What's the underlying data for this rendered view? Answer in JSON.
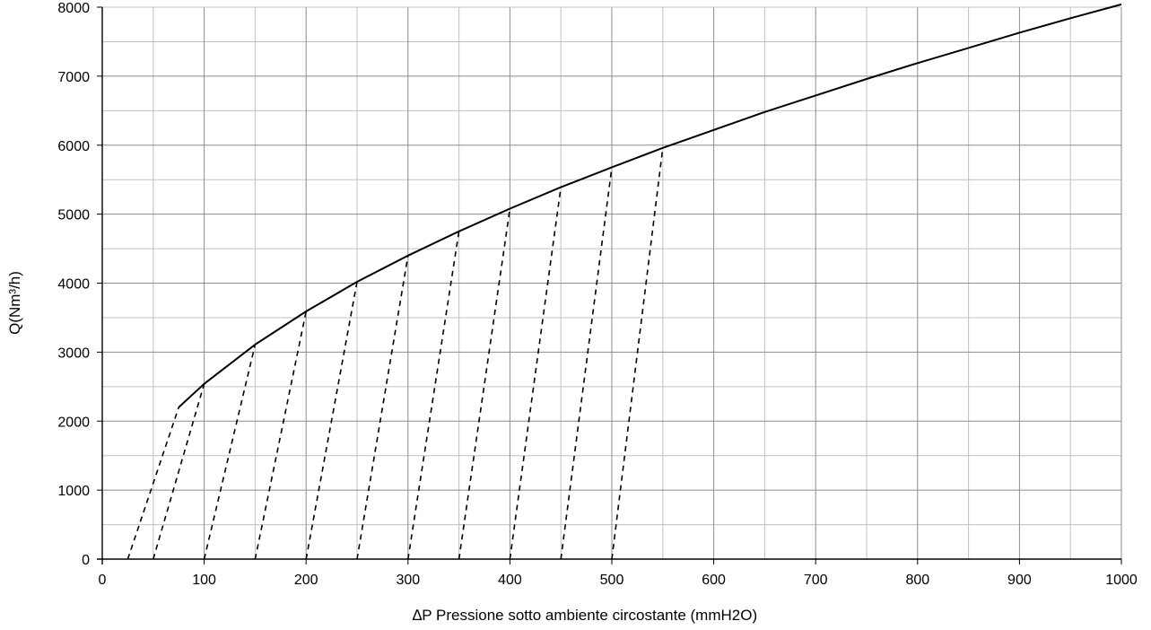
{
  "chart_data": {
    "type": "line",
    "title": "",
    "xlabel": "∆P Pressione sotto ambiente circostante (mmH2O)",
    "ylabel": "Q(Nm³/h)",
    "xlim": [
      0,
      1000
    ],
    "ylim": [
      0,
      8000
    ],
    "x_major_step": 100,
    "x_minor_step": 50,
    "y_major_step": 1000,
    "y_minor_step": 500,
    "grid": true,
    "legend": "none",
    "x_ticks": [
      "0",
      "100",
      "200",
      "300",
      "400",
      "500",
      "600",
      "700",
      "800",
      "900",
      "1000"
    ],
    "y_ticks": [
      "0",
      "1000",
      "2000",
      "3000",
      "4000",
      "5000",
      "6000",
      "7000",
      "8000"
    ],
    "series": [
      {
        "style": "solid",
        "points": [
          [
            75,
            2200
          ],
          [
            100,
            2540
          ],
          [
            150,
            3110
          ],
          [
            200,
            3590
          ],
          [
            250,
            4020
          ],
          [
            300,
            4400
          ],
          [
            350,
            4750
          ],
          [
            400,
            5080
          ],
          [
            450,
            5390
          ],
          [
            500,
            5680
          ],
          [
            550,
            5960
          ],
          [
            600,
            6220
          ],
          [
            650,
            6480
          ],
          [
            700,
            6720
          ],
          [
            750,
            6960
          ],
          [
            800,
            7190
          ],
          [
            850,
            7410
          ],
          [
            900,
            7630
          ],
          [
            950,
            7840
          ],
          [
            1000,
            8040
          ]
        ]
      },
      {
        "style": "dashed",
        "points": [
          [
            25,
            0
          ],
          [
            75,
            2200
          ]
        ]
      },
      {
        "style": "dashed",
        "points": [
          [
            50,
            0
          ],
          [
            100,
            2540
          ]
        ]
      },
      {
        "style": "dashed",
        "points": [
          [
            100,
            0
          ],
          [
            150,
            3110
          ]
        ]
      },
      {
        "style": "dashed",
        "points": [
          [
            150,
            0
          ],
          [
            200,
            3590
          ]
        ]
      },
      {
        "style": "dashed",
        "points": [
          [
            200,
            0
          ],
          [
            250,
            4020
          ]
        ]
      },
      {
        "style": "dashed",
        "points": [
          [
            250,
            0
          ],
          [
            300,
            4400
          ]
        ]
      },
      {
        "style": "dashed",
        "points": [
          [
            300,
            0
          ],
          [
            350,
            4750
          ]
        ]
      },
      {
        "style": "dashed",
        "points": [
          [
            350,
            0
          ],
          [
            400,
            5080
          ]
        ]
      },
      {
        "style": "dashed",
        "points": [
          [
            400,
            0
          ],
          [
            450,
            5390
          ]
        ]
      },
      {
        "style": "dashed",
        "points": [
          [
            450,
            0
          ],
          [
            500,
            5680
          ]
        ]
      },
      {
        "style": "dashed",
        "points": [
          [
            500,
            0
          ],
          [
            550,
            5960
          ]
        ]
      }
    ]
  },
  "colors": {
    "background": "#ffffff",
    "major_grid": "#8c8c8c",
    "minor_grid": "#c0c0c0",
    "line": "#000000"
  }
}
